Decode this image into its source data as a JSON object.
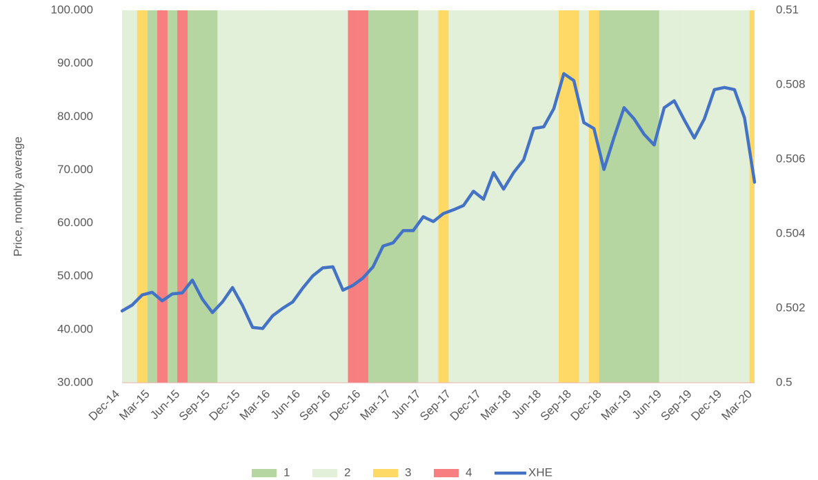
{
  "chart_data": {
    "type": "bar-line",
    "y_axis_label": "Price, monthly average",
    "categories": [
      "Dec-14",
      null,
      null,
      "Mar-15",
      null,
      null,
      "Jun-15",
      null,
      null,
      "Sep-15",
      null,
      null,
      "Dec-15",
      null,
      null,
      "Mar-16",
      null,
      null,
      "Jun-16",
      null,
      null,
      "Sep-16",
      null,
      null,
      "Dec-16",
      null,
      null,
      "Mar-17",
      null,
      null,
      "Jun-17",
      null,
      null,
      "Sep-17",
      null,
      null,
      "Dec-17",
      null,
      null,
      "Mar-18",
      null,
      null,
      "Jun-18",
      null,
      null,
      "Sep-18",
      null,
      null,
      "Dec-18",
      null,
      null,
      "Mar-19",
      null,
      null,
      "Jun-19",
      null,
      null,
      "Sep-19",
      null,
      null,
      "Dec-19",
      null,
      null,
      "Mar-20"
    ],
    "ylim": [
      30,
      100
    ],
    "yticks": [
      {
        "value": 30,
        "label": "30.000"
      },
      {
        "value": 40,
        "label": "40.000"
      },
      {
        "value": 50,
        "label": "50.000"
      },
      {
        "value": 60,
        "label": "60.000"
      },
      {
        "value": 70,
        "label": "70.000"
      },
      {
        "value": 80,
        "label": "80.000"
      },
      {
        "value": 90,
        "label": "90.000"
      },
      {
        "value": 100,
        "label": "100.000"
      }
    ],
    "y2lim": [
      0.5,
      0.51
    ],
    "y2ticks": [
      0.5,
      0.502,
      0.504,
      0.506,
      0.508,
      0.51
    ],
    "legend": "bottom",
    "series": [
      {
        "name": "1",
        "type": "bar",
        "axis": "y2",
        "color": "#b5d6a0",
        "values": [
          null,
          null,
          null,
          0.51,
          null,
          0.51,
          null,
          0.51,
          0.51,
          0.51,
          null,
          null,
          null,
          null,
          null,
          null,
          null,
          null,
          null,
          null,
          null,
          null,
          null,
          null,
          null,
          0.51,
          0.51,
          0.51,
          0.51,
          0.51,
          null,
          null,
          null,
          null,
          null,
          null,
          null,
          null,
          null,
          null,
          null,
          null,
          null,
          null,
          null,
          null,
          null,
          null,
          0.51,
          0.51,
          0.51,
          0.51,
          0.51,
          0.51,
          null,
          null,
          null,
          null,
          null,
          null,
          null,
          null,
          null,
          null
        ]
      },
      {
        "name": "2",
        "type": "bar",
        "axis": "y2",
        "color": "#e2efd9",
        "values": [
          0.51,
          0.51,
          null,
          null,
          null,
          null,
          null,
          null,
          null,
          null,
          0.51,
          0.51,
          0.51,
          0.51,
          0.51,
          0.51,
          0.51,
          0.51,
          0.51,
          0.51,
          0.51,
          0.51,
          0.51,
          null,
          null,
          null,
          null,
          null,
          null,
          null,
          0.51,
          0.51,
          null,
          0.51,
          0.51,
          0.51,
          0.51,
          0.51,
          0.51,
          0.51,
          0.51,
          0.51,
          0.51,
          0.51,
          null,
          null,
          0.51,
          null,
          null,
          null,
          null,
          null,
          null,
          null,
          0.51,
          0.51,
          0.51,
          0.51,
          0.51,
          0.51,
          0.51,
          0.51,
          0.51,
          null
        ]
      },
      {
        "name": "3",
        "type": "bar",
        "axis": "y2",
        "color": "#ffd966",
        "values": [
          null,
          null,
          0.51,
          null,
          null,
          null,
          null,
          null,
          null,
          null,
          null,
          null,
          null,
          null,
          null,
          null,
          null,
          null,
          null,
          null,
          null,
          null,
          null,
          null,
          null,
          null,
          null,
          null,
          null,
          null,
          null,
          null,
          0.51,
          null,
          null,
          null,
          null,
          null,
          null,
          null,
          null,
          null,
          null,
          null,
          0.51,
          0.51,
          null,
          0.51,
          null,
          null,
          null,
          null,
          null,
          null,
          null,
          null,
          null,
          null,
          null,
          null,
          null,
          null,
          null,
          0.51
        ]
      },
      {
        "name": "4",
        "type": "bar",
        "axis": "y2",
        "color": "#f77f7f",
        "values": [
          null,
          null,
          null,
          null,
          0.51,
          null,
          0.51,
          null,
          null,
          null,
          null,
          null,
          null,
          null,
          null,
          null,
          null,
          null,
          null,
          null,
          null,
          null,
          null,
          0.51,
          0.51,
          null,
          null,
          null,
          null,
          null,
          null,
          null,
          null,
          null,
          null,
          null,
          null,
          null,
          null,
          null,
          null,
          null,
          null,
          null,
          null,
          null,
          null,
          null,
          null,
          null,
          null,
          null,
          null,
          null,
          null,
          null,
          null,
          null,
          null,
          null,
          null,
          null,
          null,
          null
        ]
      },
      {
        "name": "XHE",
        "type": "line",
        "color": "#4472c4",
        "values": [
          43.5,
          44.6,
          46.5,
          47.0,
          45.4,
          46.7,
          46.9,
          49.3,
          45.7,
          43.2,
          45.2,
          47.9,
          44.5,
          40.4,
          40.2,
          42.6,
          44.0,
          45.2,
          47.8,
          50.1,
          51.6,
          51.8,
          47.4,
          48.3,
          49.7,
          51.8,
          55.7,
          56.3,
          58.6,
          58.6,
          61.2,
          60.3,
          61.8,
          62.5,
          63.3,
          66.0,
          64.5,
          69.5,
          66.4,
          69.5,
          71.9,
          77.8,
          78.1,
          81.5,
          88.1,
          86.8,
          78.9,
          77.8,
          70.1,
          76.1,
          81.7,
          79.6,
          76.7,
          74.7,
          81.7,
          83.0,
          79.4,
          76.0,
          79.6,
          85.1,
          85.5,
          85.1,
          79.8,
          67.7
        ]
      }
    ]
  }
}
